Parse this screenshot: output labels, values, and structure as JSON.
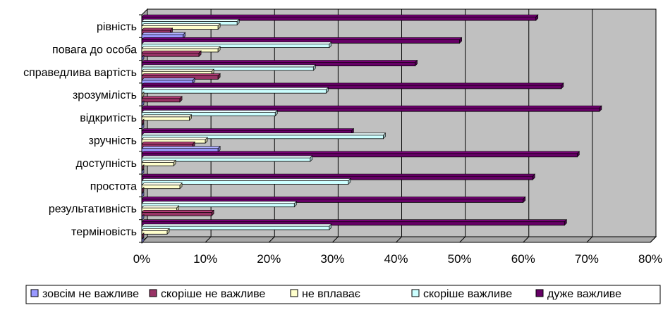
{
  "chart_data": {
    "type": "bar",
    "orientation": "horizontal",
    "style": "3d",
    "categories": [
      "рівність",
      "повага до особа",
      "справедлива вартість",
      "зрозумілість",
      "відкритість",
      "зручність",
      "доступність",
      "простота",
      "результативність",
      "терміновість"
    ],
    "series": [
      {
        "name": "зовсім не важливе",
        "color": "#9999ff",
        "values": [
          6.5,
          0,
          8,
          0,
          0,
          12,
          0,
          0,
          0,
          0
        ]
      },
      {
        "name": "скоріше не важливе",
        "color": "#993366",
        "values": [
          4.5,
          9,
          12,
          6,
          0,
          8,
          0,
          0,
          11,
          0
        ]
      },
      {
        "name": "не вплаває",
        "color": "#ffffcc",
        "values": [
          12,
          12,
          11,
          0,
          7.5,
          10,
          5,
          6,
          5.5,
          4
        ]
      },
      {
        "name": "скоріше важливе",
        "color": "#ccffff",
        "values": [
          15,
          29.5,
          27,
          29,
          21,
          38,
          26.5,
          32.5,
          24,
          29.5
        ]
      },
      {
        "name": "дуже важливе",
        "color": "#660066",
        "values": [
          62,
          50,
          43,
          66,
          72,
          33,
          68.5,
          61.5,
          60,
          66.5
        ]
      }
    ],
    "xlim": [
      0,
      80
    ],
    "ticks": [
      "0%",
      "10%",
      "20%",
      "30%",
      "40%",
      "50%",
      "60%",
      "70%",
      "80%"
    ],
    "grid": true,
    "legend_position": "bottom"
  }
}
